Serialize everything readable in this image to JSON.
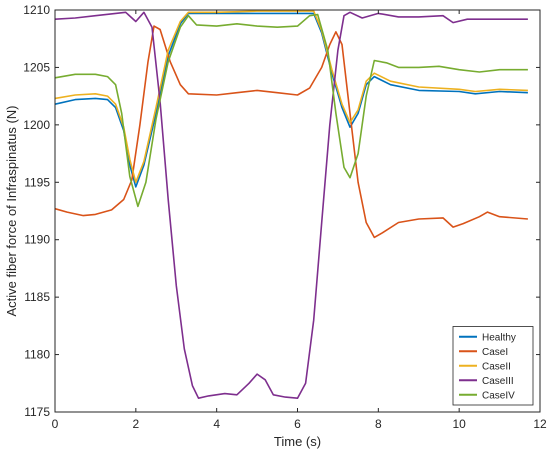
{
  "chart_data": {
    "type": "line",
    "xlabel": "Time (s)",
    "ylabel": "Active fiber force of Infraspinatus (N)",
    "xlim": [
      0,
      12
    ],
    "ylim": [
      1175,
      1210
    ],
    "xticks": [
      0,
      2,
      4,
      6,
      8,
      10,
      12
    ],
    "yticks": [
      1175,
      1180,
      1185,
      1190,
      1195,
      1200,
      1205,
      1210
    ],
    "grid": false,
    "legend_position": "bottom-right",
    "series": [
      {
        "name": "Healthy",
        "color": "#0072BD",
        "points": [
          [
            0,
            1201.8
          ],
          [
            0.5,
            1202.2
          ],
          [
            1.0,
            1202.3
          ],
          [
            1.3,
            1202.2
          ],
          [
            1.5,
            1201.5
          ],
          [
            1.7,
            1199.5
          ],
          [
            1.85,
            1196.5
          ],
          [
            2.0,
            1194.6
          ],
          [
            2.2,
            1196.5
          ],
          [
            2.5,
            1201.0
          ],
          [
            2.8,
            1206.0
          ],
          [
            3.1,
            1208.8
          ],
          [
            3.3,
            1209.7
          ],
          [
            4.0,
            1209.7
          ],
          [
            5.0,
            1209.7
          ],
          [
            6.0,
            1209.7
          ],
          [
            6.4,
            1209.7
          ],
          [
            6.6,
            1208.0
          ],
          [
            6.85,
            1204.5
          ],
          [
            7.1,
            1201.5
          ],
          [
            7.3,
            1199.8
          ],
          [
            7.5,
            1201.0
          ],
          [
            7.7,
            1203.5
          ],
          [
            7.9,
            1204.2
          ],
          [
            8.3,
            1203.5
          ],
          [
            9.0,
            1203.0
          ],
          [
            10.0,
            1202.9
          ],
          [
            10.4,
            1202.7
          ],
          [
            11.0,
            1202.9
          ],
          [
            11.7,
            1202.8
          ]
        ]
      },
      {
        "name": "CaseI",
        "color": "#D95319",
        "points": [
          [
            0,
            1192.7
          ],
          [
            0.3,
            1192.4
          ],
          [
            0.7,
            1192.1
          ],
          [
            1.0,
            1192.2
          ],
          [
            1.4,
            1192.6
          ],
          [
            1.7,
            1193.5
          ],
          [
            1.9,
            1195.2
          ],
          [
            2.1,
            1200.0
          ],
          [
            2.3,
            1205.5
          ],
          [
            2.45,
            1208.6
          ],
          [
            2.6,
            1208.3
          ],
          [
            2.85,
            1205.5
          ],
          [
            3.1,
            1203.5
          ],
          [
            3.3,
            1202.7
          ],
          [
            4.0,
            1202.6
          ],
          [
            4.5,
            1202.8
          ],
          [
            5.0,
            1203.0
          ],
          [
            5.5,
            1202.8
          ],
          [
            6.0,
            1202.6
          ],
          [
            6.3,
            1203.2
          ],
          [
            6.6,
            1205.0
          ],
          [
            6.8,
            1207.0
          ],
          [
            6.95,
            1208.1
          ],
          [
            7.1,
            1207.0
          ],
          [
            7.3,
            1201.0
          ],
          [
            7.5,
            1195.0
          ],
          [
            7.7,
            1191.5
          ],
          [
            7.9,
            1190.2
          ],
          [
            8.1,
            1190.6
          ],
          [
            8.5,
            1191.5
          ],
          [
            9.0,
            1191.8
          ],
          [
            9.6,
            1191.9
          ],
          [
            9.85,
            1191.1
          ],
          [
            10.1,
            1191.4
          ],
          [
            10.5,
            1192.0
          ],
          [
            10.7,
            1192.4
          ],
          [
            11.0,
            1192.0
          ],
          [
            11.7,
            1191.8
          ]
        ]
      },
      {
        "name": "CaseII",
        "color": "#EDB120",
        "points": [
          [
            0,
            1202.3
          ],
          [
            0.5,
            1202.6
          ],
          [
            1.0,
            1202.7
          ],
          [
            1.3,
            1202.5
          ],
          [
            1.5,
            1201.8
          ],
          [
            1.7,
            1199.8
          ],
          [
            1.85,
            1197.0
          ],
          [
            2.0,
            1195.0
          ],
          [
            2.2,
            1196.8
          ],
          [
            2.5,
            1201.5
          ],
          [
            2.8,
            1206.5
          ],
          [
            3.1,
            1209.0
          ],
          [
            3.3,
            1209.8
          ],
          [
            4.0,
            1209.8
          ],
          [
            5.0,
            1209.9
          ],
          [
            6.0,
            1209.9
          ],
          [
            6.4,
            1209.9
          ],
          [
            6.6,
            1208.2
          ],
          [
            6.85,
            1204.8
          ],
          [
            7.1,
            1201.8
          ],
          [
            7.3,
            1200.2
          ],
          [
            7.5,
            1201.3
          ],
          [
            7.7,
            1203.8
          ],
          [
            7.9,
            1204.5
          ],
          [
            8.3,
            1203.8
          ],
          [
            9.0,
            1203.3
          ],
          [
            10.0,
            1203.1
          ],
          [
            10.4,
            1202.9
          ],
          [
            11.0,
            1203.1
          ],
          [
            11.7,
            1203.0
          ]
        ]
      },
      {
        "name": "CaseIII",
        "color": "#7E2F8E",
        "points": [
          [
            0,
            1209.2
          ],
          [
            0.5,
            1209.3
          ],
          [
            1.0,
            1209.5
          ],
          [
            1.5,
            1209.7
          ],
          [
            1.75,
            1209.8
          ],
          [
            2.0,
            1209.0
          ],
          [
            2.2,
            1209.8
          ],
          [
            2.4,
            1208.5
          ],
          [
            2.6,
            1202.0
          ],
          [
            2.8,
            1193.5
          ],
          [
            3.0,
            1186.0
          ],
          [
            3.2,
            1180.5
          ],
          [
            3.4,
            1177.3
          ],
          [
            3.55,
            1176.2
          ],
          [
            3.8,
            1176.4
          ],
          [
            4.2,
            1176.6
          ],
          [
            4.5,
            1176.5
          ],
          [
            4.8,
            1177.5
          ],
          [
            5.0,
            1178.3
          ],
          [
            5.2,
            1177.8
          ],
          [
            5.4,
            1176.5
          ],
          [
            5.7,
            1176.3
          ],
          [
            6.0,
            1176.2
          ],
          [
            6.2,
            1177.5
          ],
          [
            6.4,
            1183.0
          ],
          [
            6.6,
            1191.5
          ],
          [
            6.8,
            1200.0
          ],
          [
            7.0,
            1206.5
          ],
          [
            7.15,
            1209.5
          ],
          [
            7.3,
            1209.8
          ],
          [
            7.6,
            1209.3
          ],
          [
            8.0,
            1209.7
          ],
          [
            8.5,
            1209.4
          ],
          [
            9.0,
            1209.4
          ],
          [
            9.6,
            1209.5
          ],
          [
            9.85,
            1208.9
          ],
          [
            10.2,
            1209.2
          ],
          [
            10.8,
            1209.2
          ],
          [
            11.7,
            1209.2
          ]
        ]
      },
      {
        "name": "CaseIV",
        "color": "#77AC30",
        "points": [
          [
            0,
            1204.1
          ],
          [
            0.5,
            1204.4
          ],
          [
            1.0,
            1204.4
          ],
          [
            1.3,
            1204.2
          ],
          [
            1.5,
            1203.5
          ],
          [
            1.65,
            1201.0
          ],
          [
            1.85,
            1195.5
          ],
          [
            2.05,
            1192.9
          ],
          [
            2.25,
            1195.0
          ],
          [
            2.5,
            1200.5
          ],
          [
            2.8,
            1205.5
          ],
          [
            3.1,
            1208.5
          ],
          [
            3.3,
            1209.5
          ],
          [
            3.5,
            1208.7
          ],
          [
            4.0,
            1208.6
          ],
          [
            4.5,
            1208.8
          ],
          [
            5.0,
            1208.6
          ],
          [
            5.5,
            1208.5
          ],
          [
            6.0,
            1208.6
          ],
          [
            6.3,
            1209.5
          ],
          [
            6.5,
            1209.6
          ],
          [
            6.75,
            1206.5
          ],
          [
            6.95,
            1201.0
          ],
          [
            7.15,
            1196.3
          ],
          [
            7.3,
            1195.4
          ],
          [
            7.5,
            1197.5
          ],
          [
            7.7,
            1202.5
          ],
          [
            7.9,
            1205.6
          ],
          [
            8.2,
            1205.4
          ],
          [
            8.5,
            1205.0
          ],
          [
            9.0,
            1205.0
          ],
          [
            9.5,
            1205.1
          ],
          [
            10.0,
            1204.8
          ],
          [
            10.5,
            1204.6
          ],
          [
            11.0,
            1204.8
          ],
          [
            11.7,
            1204.8
          ]
        ]
      }
    ]
  }
}
